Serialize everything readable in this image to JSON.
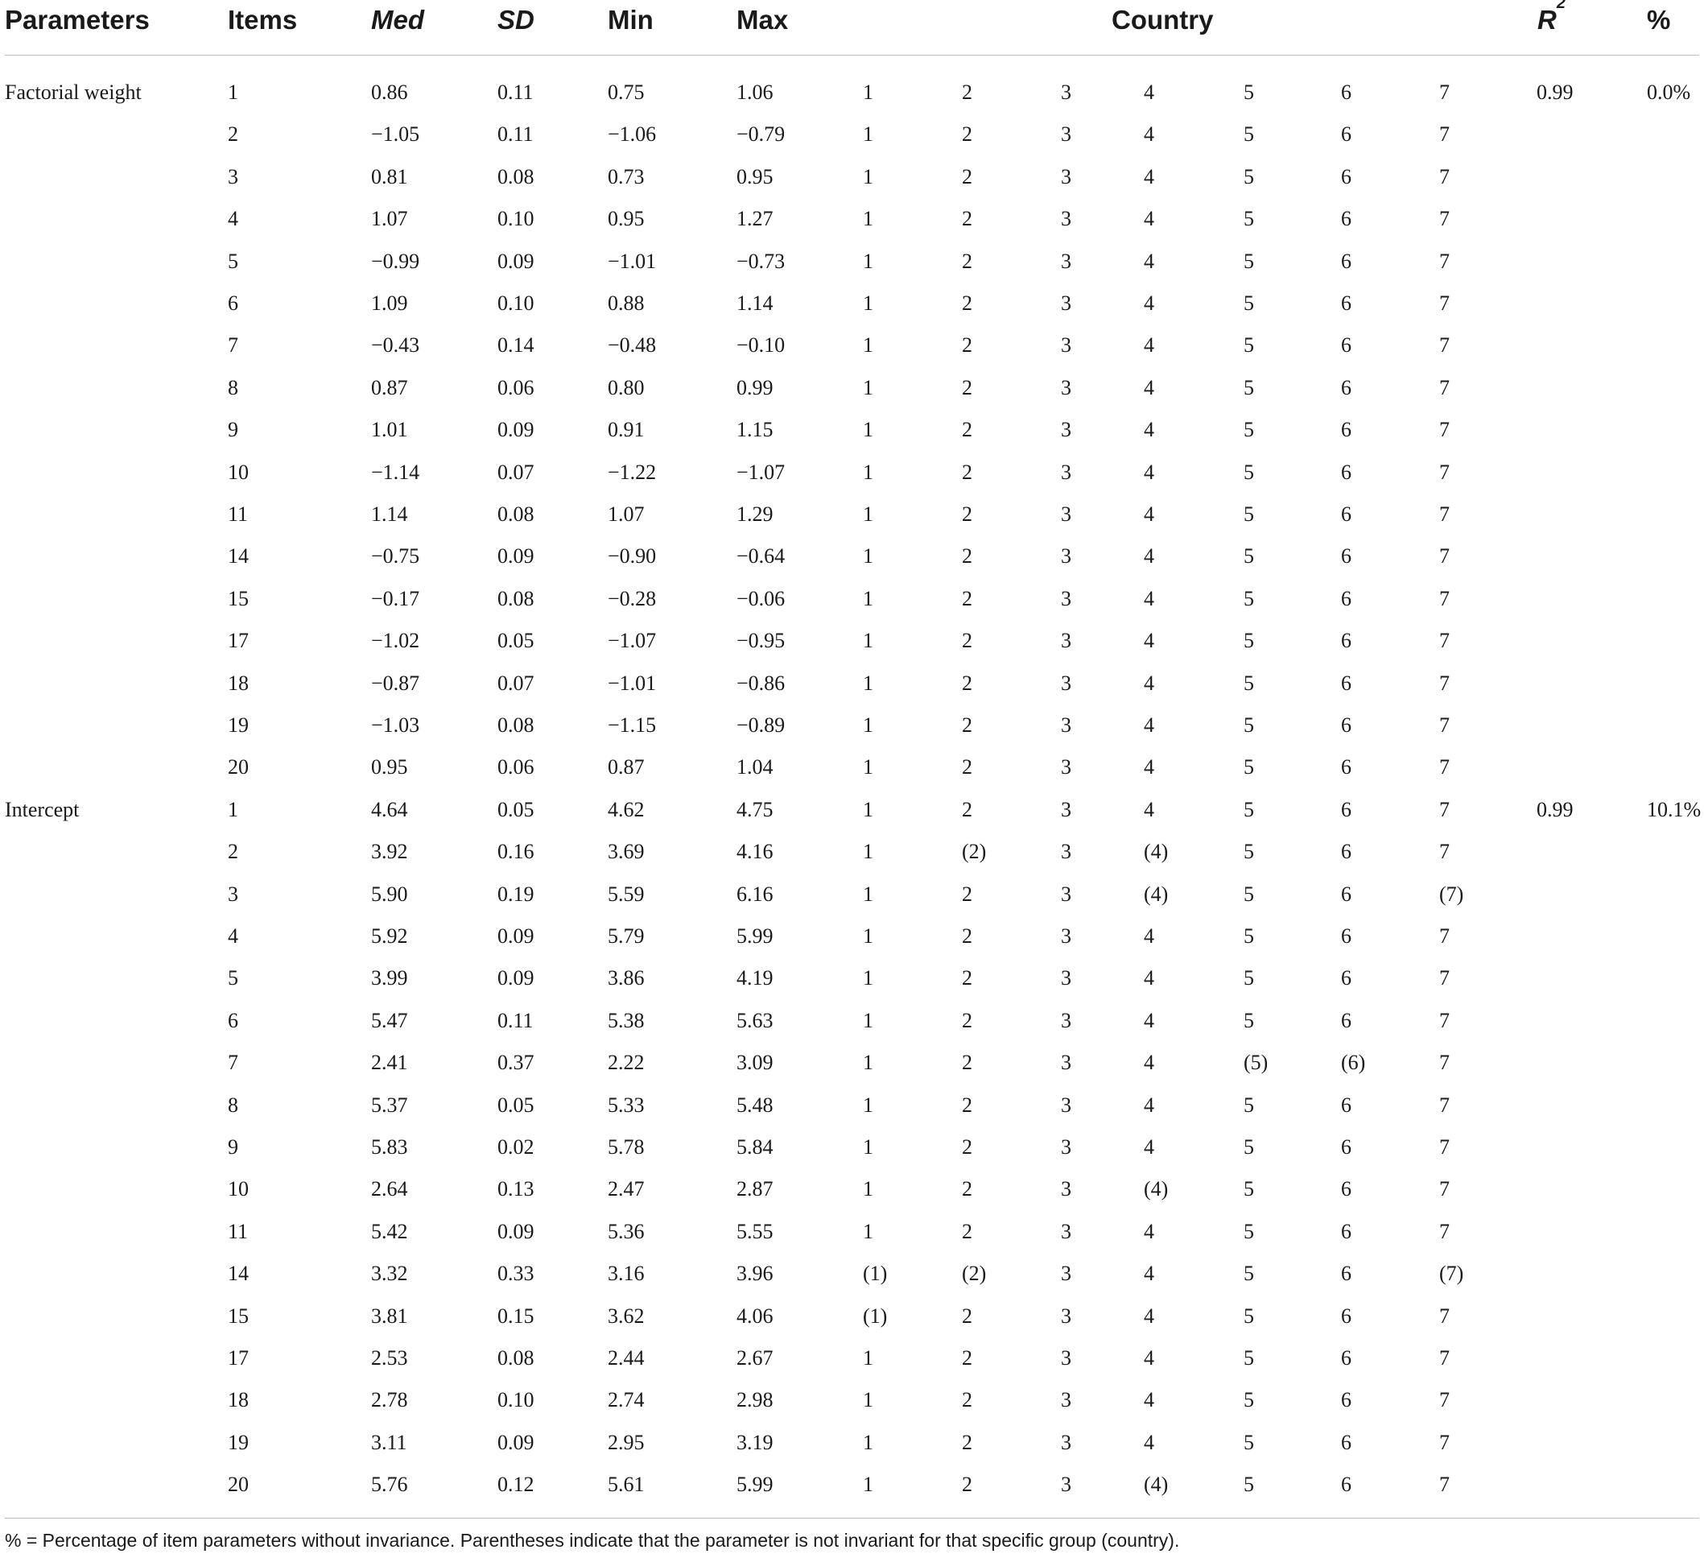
{
  "table": {
    "headers": {
      "parameters": "Parameters",
      "items": "Items",
      "med": "Med",
      "sd": "SD",
      "min": "Min",
      "max": "Max",
      "country": "Country",
      "r2": "R",
      "r2_sup": "2",
      "pct": "%"
    },
    "rows": [
      {
        "param": "Factorial weight",
        "item": "1",
        "med": "0.86",
        "sd": "0.11",
        "min": "0.75",
        "max": "1.06",
        "countries": [
          "1",
          "2",
          "3",
          "4",
          "5",
          "6",
          "7"
        ],
        "r2": "0.99",
        "pct": "0.0%"
      },
      {
        "param": "",
        "item": "2",
        "med": "−1.05",
        "sd": "0.11",
        "min": "−1.06",
        "max": "−0.79",
        "countries": [
          "1",
          "2",
          "3",
          "4",
          "5",
          "6",
          "7"
        ],
        "r2": "",
        "pct": ""
      },
      {
        "param": "",
        "item": "3",
        "med": "0.81",
        "sd": "0.08",
        "min": "0.73",
        "max": "0.95",
        "countries": [
          "1",
          "2",
          "3",
          "4",
          "5",
          "6",
          "7"
        ],
        "r2": "",
        "pct": ""
      },
      {
        "param": "",
        "item": "4",
        "med": "1.07",
        "sd": "0.10",
        "min": "0.95",
        "max": "1.27",
        "countries": [
          "1",
          "2",
          "3",
          "4",
          "5",
          "6",
          "7"
        ],
        "r2": "",
        "pct": ""
      },
      {
        "param": "",
        "item": "5",
        "med": "−0.99",
        "sd": "0.09",
        "min": "−1.01",
        "max": "−0.73",
        "countries": [
          "1",
          "2",
          "3",
          "4",
          "5",
          "6",
          "7"
        ],
        "r2": "",
        "pct": ""
      },
      {
        "param": "",
        "item": "6",
        "med": "1.09",
        "sd": "0.10",
        "min": "0.88",
        "max": "1.14",
        "countries": [
          "1",
          "2",
          "3",
          "4",
          "5",
          "6",
          "7"
        ],
        "r2": "",
        "pct": ""
      },
      {
        "param": "",
        "item": "7",
        "med": "−0.43",
        "sd": "0.14",
        "min": "−0.48",
        "max": "−0.10",
        "countries": [
          "1",
          "2",
          "3",
          "4",
          "5",
          "6",
          "7"
        ],
        "r2": "",
        "pct": ""
      },
      {
        "param": "",
        "item": "8",
        "med": "0.87",
        "sd": "0.06",
        "min": "0.80",
        "max": "0.99",
        "countries": [
          "1",
          "2",
          "3",
          "4",
          "5",
          "6",
          "7"
        ],
        "r2": "",
        "pct": ""
      },
      {
        "param": "",
        "item": "9",
        "med": "1.01",
        "sd": "0.09",
        "min": "0.91",
        "max": "1.15",
        "countries": [
          "1",
          "2",
          "3",
          "4",
          "5",
          "6",
          "7"
        ],
        "r2": "",
        "pct": ""
      },
      {
        "param": "",
        "item": "10",
        "med": "−1.14",
        "sd": "0.07",
        "min": "−1.22",
        "max": "−1.07",
        "countries": [
          "1",
          "2",
          "3",
          "4",
          "5",
          "6",
          "7"
        ],
        "r2": "",
        "pct": ""
      },
      {
        "param": "",
        "item": "11",
        "med": "1.14",
        "sd": "0.08",
        "min": "1.07",
        "max": "1.29",
        "countries": [
          "1",
          "2",
          "3",
          "4",
          "5",
          "6",
          "7"
        ],
        "r2": "",
        "pct": ""
      },
      {
        "param": "",
        "item": "14",
        "med": "−0.75",
        "sd": "0.09",
        "min": "−0.90",
        "max": "−0.64",
        "countries": [
          "1",
          "2",
          "3",
          "4",
          "5",
          "6",
          "7"
        ],
        "r2": "",
        "pct": ""
      },
      {
        "param": "",
        "item": "15",
        "med": "−0.17",
        "sd": "0.08",
        "min": "−0.28",
        "max": "−0.06",
        "countries": [
          "1",
          "2",
          "3",
          "4",
          "5",
          "6",
          "7"
        ],
        "r2": "",
        "pct": ""
      },
      {
        "param": "",
        "item": "17",
        "med": "−1.02",
        "sd": "0.05",
        "min": "−1.07",
        "max": "−0.95",
        "countries": [
          "1",
          "2",
          "3",
          "4",
          "5",
          "6",
          "7"
        ],
        "r2": "",
        "pct": ""
      },
      {
        "param": "",
        "item": "18",
        "med": "−0.87",
        "sd": "0.07",
        "min": "−1.01",
        "max": "−0.86",
        "countries": [
          "1",
          "2",
          "3",
          "4",
          "5",
          "6",
          "7"
        ],
        "r2": "",
        "pct": ""
      },
      {
        "param": "",
        "item": "19",
        "med": "−1.03",
        "sd": "0.08",
        "min": "−1.15",
        "max": "−0.89",
        "countries": [
          "1",
          "2",
          "3",
          "4",
          "5",
          "6",
          "7"
        ],
        "r2": "",
        "pct": ""
      },
      {
        "param": "",
        "item": "20",
        "med": "0.95",
        "sd": "0.06",
        "min": "0.87",
        "max": "1.04",
        "countries": [
          "1",
          "2",
          "3",
          "4",
          "5",
          "6",
          "7"
        ],
        "r2": "",
        "pct": ""
      },
      {
        "param": "Intercept",
        "item": "1",
        "med": "4.64",
        "sd": "0.05",
        "min": "4.62",
        "max": "4.75",
        "countries": [
          "1",
          "2",
          "3",
          "4",
          "5",
          "6",
          "7"
        ],
        "r2": "0.99",
        "pct": "10.1%"
      },
      {
        "param": "",
        "item": "2",
        "med": "3.92",
        "sd": "0.16",
        "min": "3.69",
        "max": "4.16",
        "countries": [
          "1",
          "(2)",
          "3",
          "(4)",
          "5",
          "6",
          "7"
        ],
        "r2": "",
        "pct": ""
      },
      {
        "param": "",
        "item": "3",
        "med": "5.90",
        "sd": "0.19",
        "min": "5.59",
        "max": "6.16",
        "countries": [
          "1",
          "2",
          "3",
          "(4)",
          "5",
          "6",
          "(7)"
        ],
        "r2": "",
        "pct": ""
      },
      {
        "param": "",
        "item": "4",
        "med": "5.92",
        "sd": "0.09",
        "min": "5.79",
        "max": "5.99",
        "countries": [
          "1",
          "2",
          "3",
          "4",
          "5",
          "6",
          "7"
        ],
        "r2": "",
        "pct": ""
      },
      {
        "param": "",
        "item": "5",
        "med": "3.99",
        "sd": "0.09",
        "min": "3.86",
        "max": "4.19",
        "countries": [
          "1",
          "2",
          "3",
          "4",
          "5",
          "6",
          "7"
        ],
        "r2": "",
        "pct": ""
      },
      {
        "param": "",
        "item": "6",
        "med": "5.47",
        "sd": "0.11",
        "min": "5.38",
        "max": "5.63",
        "countries": [
          "1",
          "2",
          "3",
          "4",
          "5",
          "6",
          "7"
        ],
        "r2": "",
        "pct": ""
      },
      {
        "param": "",
        "item": "7",
        "med": "2.41",
        "sd": "0.37",
        "min": "2.22",
        "max": "3.09",
        "countries": [
          "1",
          "2",
          "3",
          "4",
          "(5)",
          "(6)",
          "7"
        ],
        "r2": "",
        "pct": ""
      },
      {
        "param": "",
        "item": "8",
        "med": "5.37",
        "sd": "0.05",
        "min": "5.33",
        "max": "5.48",
        "countries": [
          "1",
          "2",
          "3",
          "4",
          "5",
          "6",
          "7"
        ],
        "r2": "",
        "pct": ""
      },
      {
        "param": "",
        "item": "9",
        "med": "5.83",
        "sd": "0.02",
        "min": "5.78",
        "max": "5.84",
        "countries": [
          "1",
          "2",
          "3",
          "4",
          "5",
          "6",
          "7"
        ],
        "r2": "",
        "pct": ""
      },
      {
        "param": "",
        "item": "10",
        "med": "2.64",
        "sd": "0.13",
        "min": "2.47",
        "max": "2.87",
        "countries": [
          "1",
          "2",
          "3",
          "(4)",
          "5",
          "6",
          "7"
        ],
        "r2": "",
        "pct": ""
      },
      {
        "param": "",
        "item": "11",
        "med": "5.42",
        "sd": "0.09",
        "min": "5.36",
        "max": "5.55",
        "countries": [
          "1",
          "2",
          "3",
          "4",
          "5",
          "6",
          "7"
        ],
        "r2": "",
        "pct": ""
      },
      {
        "param": "",
        "item": "14",
        "med": "3.32",
        "sd": "0.33",
        "min": "3.16",
        "max": "3.96",
        "countries": [
          "(1)",
          "(2)",
          "3",
          "4",
          "5",
          "6",
          "(7)"
        ],
        "r2": "",
        "pct": ""
      },
      {
        "param": "",
        "item": "15",
        "med": "3.81",
        "sd": "0.15",
        "min": "3.62",
        "max": "4.06",
        "countries": [
          "(1)",
          "2",
          "3",
          "4",
          "5",
          "6",
          "7"
        ],
        "r2": "",
        "pct": ""
      },
      {
        "param": "",
        "item": "17",
        "med": "2.53",
        "sd": "0.08",
        "min": "2.44",
        "max": "2.67",
        "countries": [
          "1",
          "2",
          "3",
          "4",
          "5",
          "6",
          "7"
        ],
        "r2": "",
        "pct": ""
      },
      {
        "param": "",
        "item": "18",
        "med": "2.78",
        "sd": "0.10",
        "min": "2.74",
        "max": "2.98",
        "countries": [
          "1",
          "2",
          "3",
          "4",
          "5",
          "6",
          "7"
        ],
        "r2": "",
        "pct": ""
      },
      {
        "param": "",
        "item": "19",
        "med": "3.11",
        "sd": "0.09",
        "min": "2.95",
        "max": "3.19",
        "countries": [
          "1",
          "2",
          "3",
          "4",
          "5",
          "6",
          "7"
        ],
        "r2": "",
        "pct": ""
      },
      {
        "param": "",
        "item": "20",
        "med": "5.76",
        "sd": "0.12",
        "min": "5.61",
        "max": "5.99",
        "countries": [
          "1",
          "2",
          "3",
          "(4)",
          "5",
          "6",
          "7"
        ],
        "r2": "",
        "pct": ""
      }
    ],
    "footnote": "% = Percentage of item parameters without invariance. Parentheses indicate that the parameter is not invariant for that specific group (country)."
  }
}
